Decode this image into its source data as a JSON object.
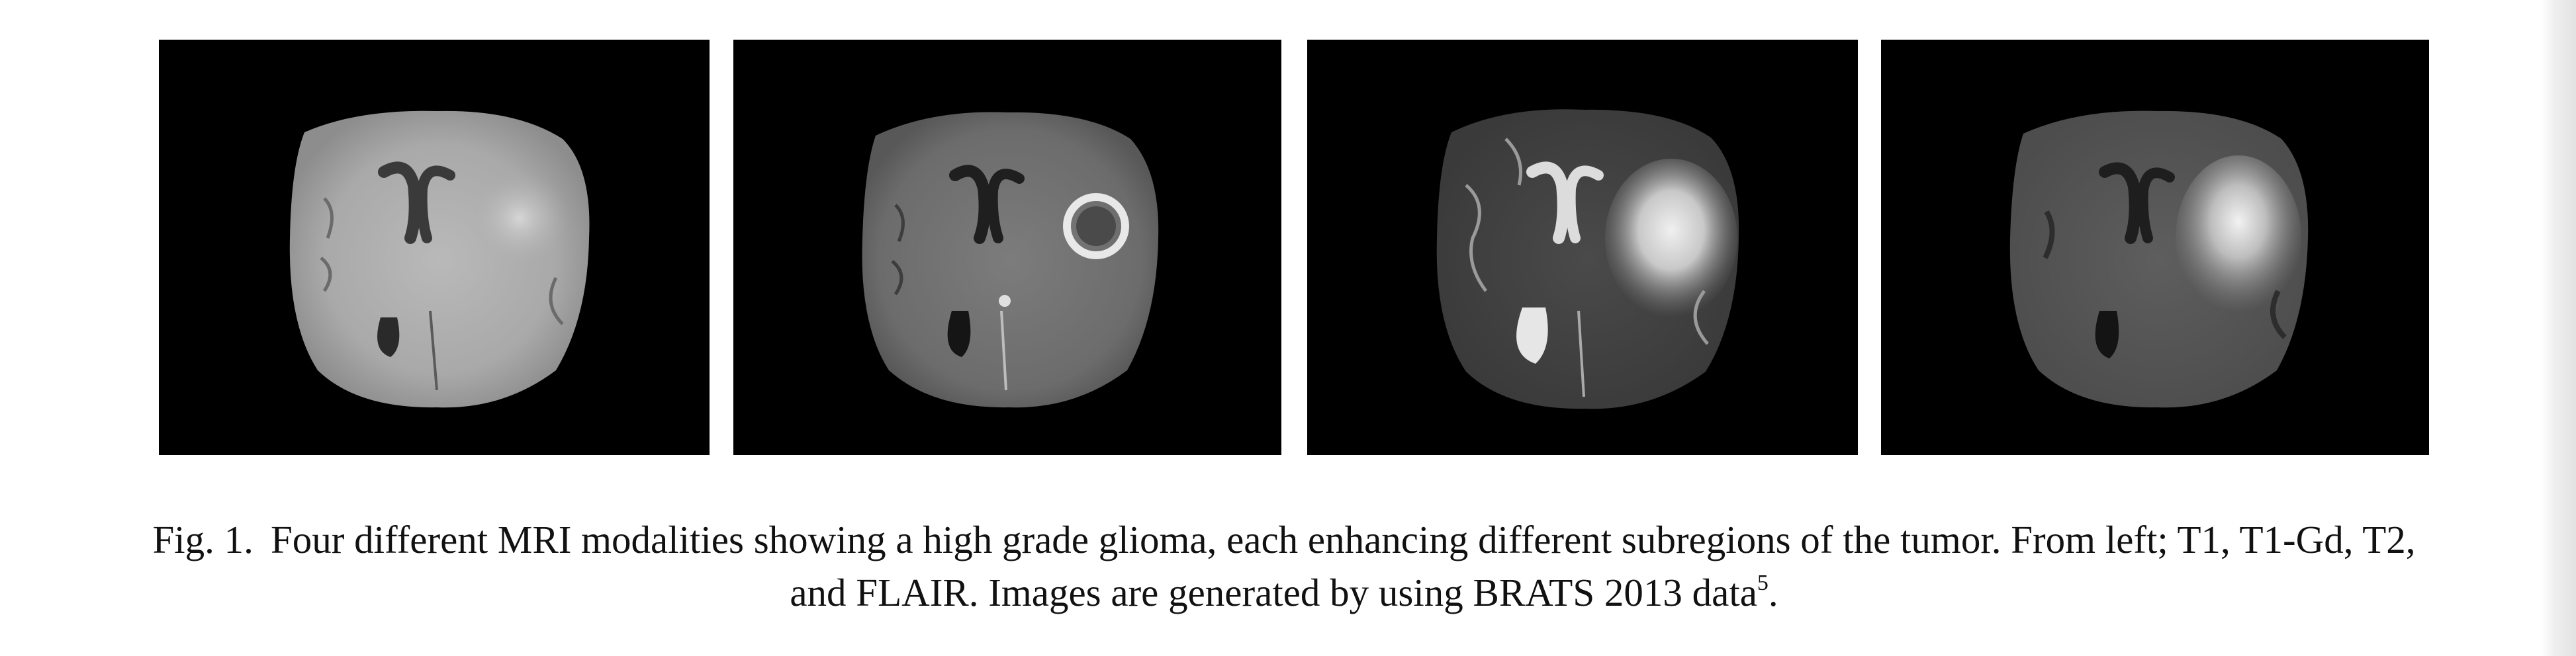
{
  "figure": {
    "panels": [
      {
        "modality": "T1",
        "icon": "mri-brain-slice-t1-icon"
      },
      {
        "modality": "T1-Gd",
        "icon": "mri-brain-slice-t1gd-icon"
      },
      {
        "modality": "T2",
        "icon": "mri-brain-slice-t2-icon"
      },
      {
        "modality": "FLAIR",
        "icon": "mri-brain-slice-flair-icon"
      }
    ],
    "caption": {
      "fig_label": "Fig. 1.",
      "line1": "Four different MRI modalities showing a high grade glioma, each enhancing different subregions of the tumor. From left; T1, T1-Gd, T2,",
      "line2": "and FLAIR. Images are generated by using BRATS 2013 data",
      "superscript": "5",
      "end_punct": "."
    }
  },
  "colors": {
    "panel_background": "#000000",
    "caption_text": "#111111",
    "page_background": "#ffffff"
  }
}
